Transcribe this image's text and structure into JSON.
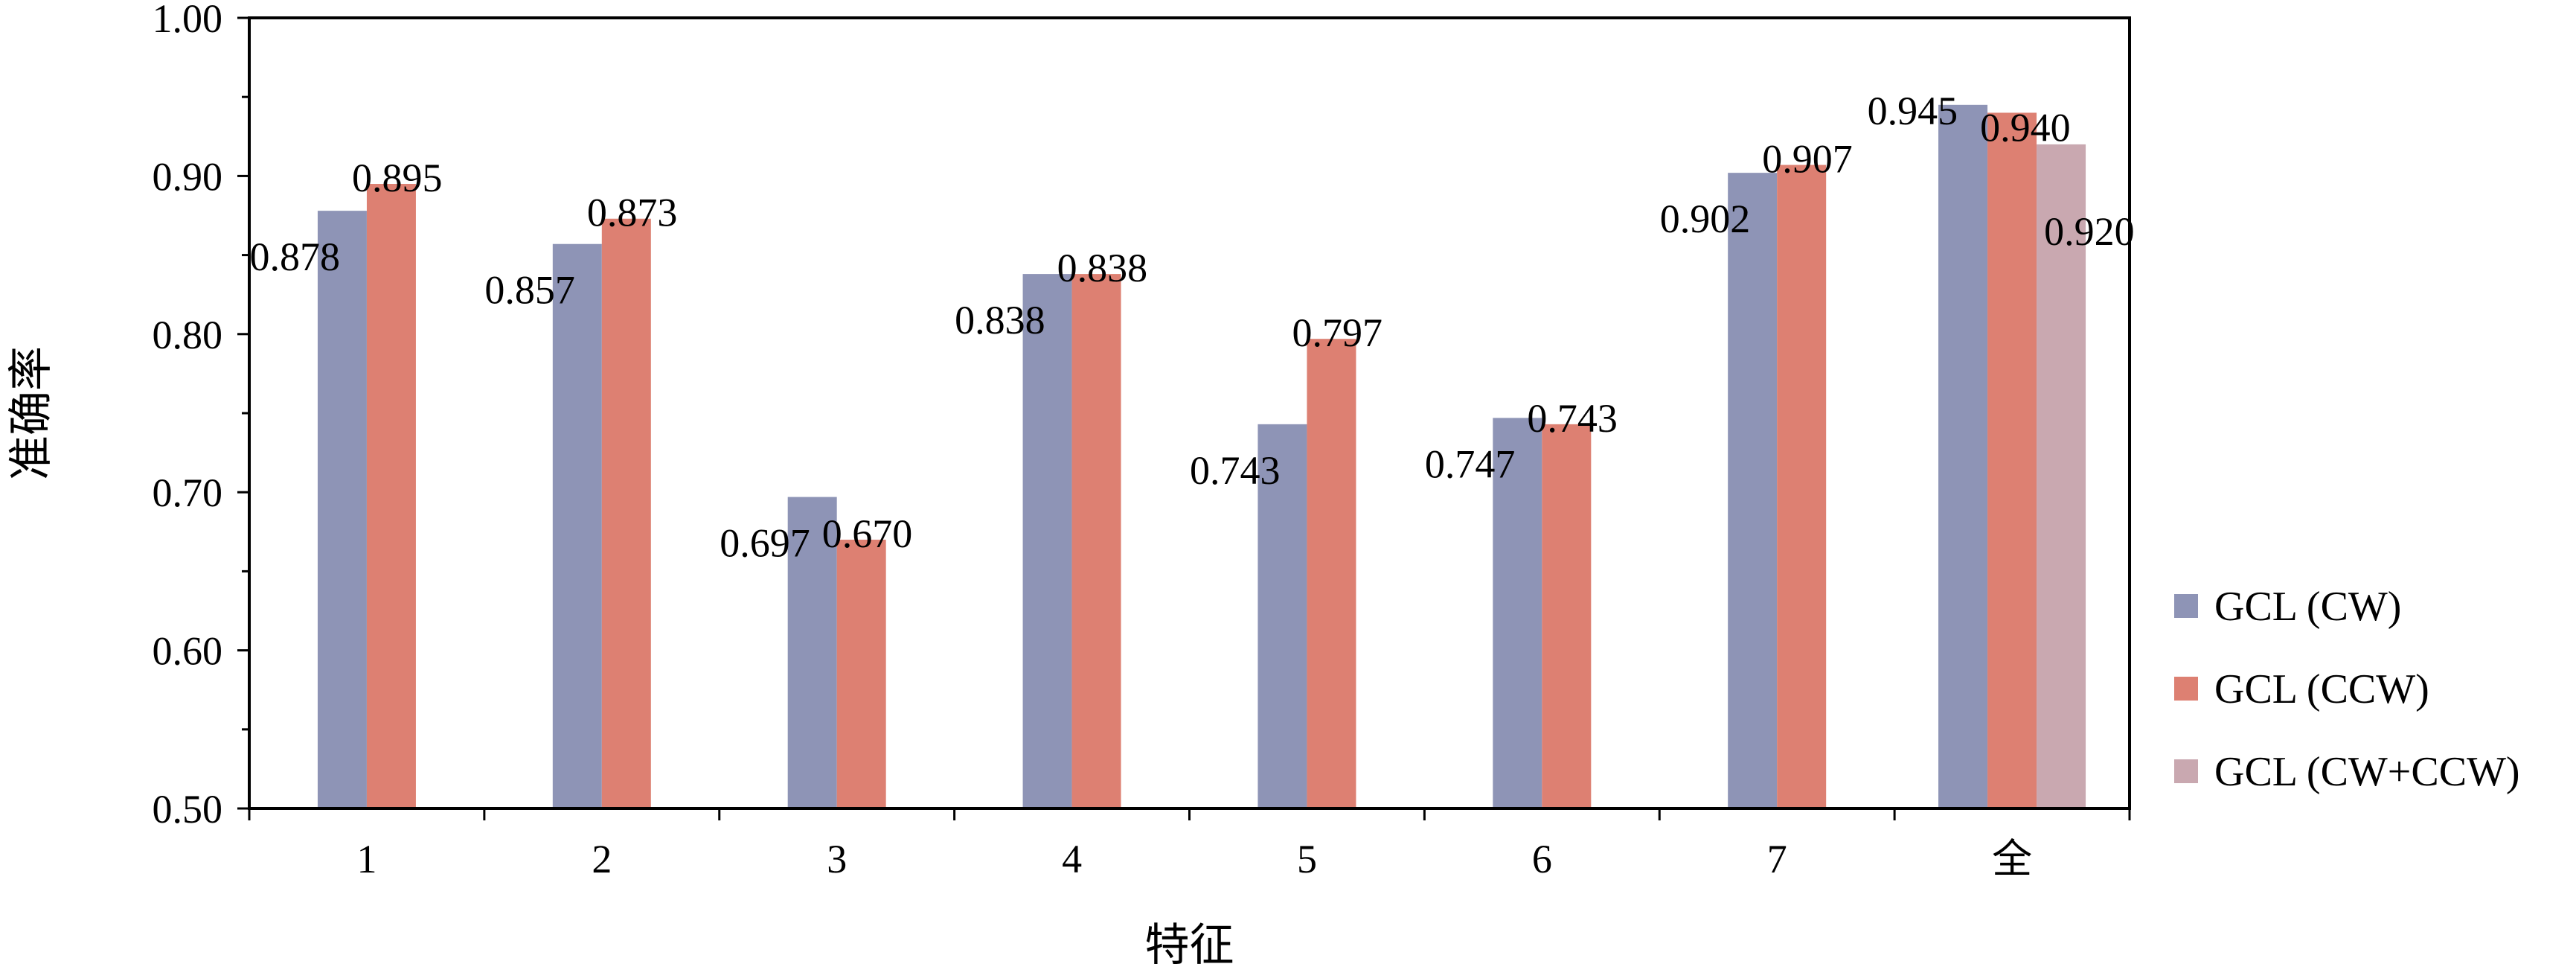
{
  "chart_data": {
    "type": "bar",
    "title": "",
    "xlabel": "特征",
    "ylabel": "准确率",
    "ylim": [
      0.5,
      1.0
    ],
    "yticks": [
      "0.50",
      "0.60",
      "0.70",
      "0.80",
      "0.90",
      "1.00"
    ],
    "categories": [
      "1",
      "2",
      "3",
      "4",
      "5",
      "6",
      "7",
      "全"
    ],
    "series": [
      {
        "name": "GCL (CW)",
        "color": "#8e94b6",
        "values": [
          0.878,
          0.857,
          0.697,
          0.838,
          0.743,
          0.747,
          0.902,
          0.945
        ],
        "labels": [
          "0.878",
          "0.857",
          "0.697",
          "0.838",
          "0.743",
          "0.747",
          "0.902",
          "0.945"
        ]
      },
      {
        "name": "GCL (CCW)",
        "color": "#dd8072",
        "values": [
          0.895,
          0.873,
          0.67,
          0.838,
          0.797,
          0.743,
          0.907,
          0.94
        ],
        "labels": [
          "0.895",
          "0.873",
          "0.670",
          "0.838",
          "0.797",
          "0.743",
          "0.907",
          "0.940"
        ]
      },
      {
        "name": "GCL (CW+CCW)",
        "color": "#c9a8b0",
        "values": [
          null,
          null,
          null,
          null,
          null,
          null,
          null,
          0.92
        ],
        "labels": [
          "",
          "",
          "",
          "",
          "",
          "",
          "",
          "0.920"
        ]
      }
    ],
    "grid": false,
    "legend_position": "right"
  }
}
